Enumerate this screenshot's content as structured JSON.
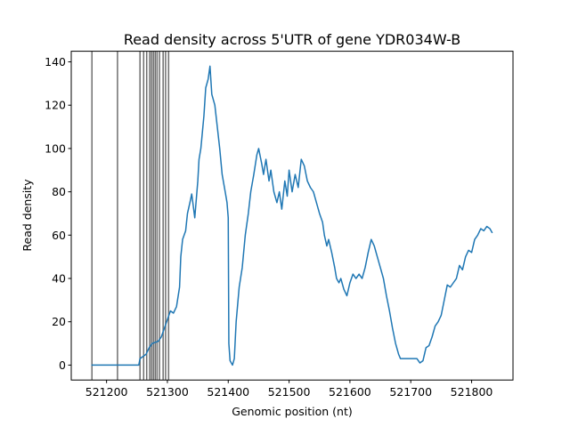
{
  "chart_data": {
    "type": "line",
    "title": "Read density across 5'UTR of gene YDR034W-B",
    "xlabel": "Genomic position (nt)",
    "ylabel": "Read density",
    "x": [
      521175,
      521253,
      521255,
      521265,
      521270,
      521275,
      521285,
      521290,
      521295,
      521300,
      521305,
      521310,
      521315,
      521320,
      521322,
      521325,
      521330,
      521333,
      521337,
      521340,
      521345,
      521350,
      521352,
      521355,
      521360,
      521363,
      521367,
      521370,
      521373,
      521378,
      521382,
      521386,
      521390,
      521395,
      521398,
      521400,
      521401,
      521403,
      521407,
      521410,
      521413,
      521418,
      521423,
      521428,
      521433,
      521437,
      521442,
      521447,
      521450,
      521455,
      521458,
      521462,
      521467,
      521470,
      521475,
      521480,
      521484,
      521488,
      521493,
      521497,
      521500,
      521505,
      521510,
      521515,
      521520,
      521525,
      521530,
      521535,
      521540,
      521545,
      521550,
      521555,
      521558,
      521562,
      521565,
      521570,
      521575,
      521578,
      521582,
      521585,
      521590,
      521595,
      521600,
      521605,
      521610,
      521615,
      521620,
      521625,
      521630,
      521635,
      521640,
      521645,
      521650,
      521655,
      521660,
      521665,
      521670,
      521675,
      521680,
      521683,
      521700,
      521710,
      521715,
      521720,
      521725,
      521730,
      521735,
      521740,
      521745,
      521750,
      521755,
      521760,
      521765,
      521770,
      521775,
      521780,
      521785,
      521790,
      521795,
      521800,
      521805,
      521810,
      521815,
      521820,
      521825,
      521830,
      521834
    ],
    "series": [
      {
        "color": "#1f77b4",
        "values": [
          0,
          0,
          3,
          5,
          8,
          10,
          11,
          13,
          17,
          21,
          25,
          24,
          27,
          36,
          50,
          58,
          62,
          70,
          75,
          79,
          68,
          85,
          95,
          100,
          115,
          128,
          132,
          138,
          125,
          120,
          110,
          100,
          88,
          80,
          75,
          68,
          10,
          2,
          0,
          3,
          20,
          36,
          45,
          60,
          70,
          80,
          88,
          97,
          100,
          93,
          88,
          95,
          85,
          90,
          80,
          75,
          80,
          72,
          85,
          78,
          90,
          80,
          88,
          82,
          95,
          92,
          85,
          82,
          80,
          75,
          70,
          66,
          60,
          55,
          58,
          52,
          45,
          40,
          38,
          40,
          35,
          32,
          38,
          42,
          40,
          42,
          40,
          45,
          52,
          58,
          55,
          50,
          45,
          40,
          32,
          25,
          17,
          10,
          5,
          3,
          3,
          3,
          1,
          2,
          8,
          9,
          13,
          18,
          20,
          23,
          30,
          37,
          36,
          38,
          40,
          46,
          44,
          50,
          53,
          52,
          58,
          60,
          63,
          62,
          64,
          63,
          61
        ]
      }
    ],
    "vlines": [
      521176,
      521218,
      521255,
      521261,
      521266,
      521271,
      521274,
      521277,
      521280,
      521283,
      521287,
      521293,
      521297,
      521302
    ],
    "vline_color": "#6e6e6e",
    "xlim": [
      521142,
      521868
    ],
    "ylim": [
      -6.9,
      144.9
    ],
    "xticks": [
      521200,
      521300,
      521400,
      521500,
      521600,
      521700,
      521800
    ],
    "yticks": [
      0,
      20,
      40,
      60,
      80,
      100,
      120,
      140
    ],
    "grid": false
  }
}
